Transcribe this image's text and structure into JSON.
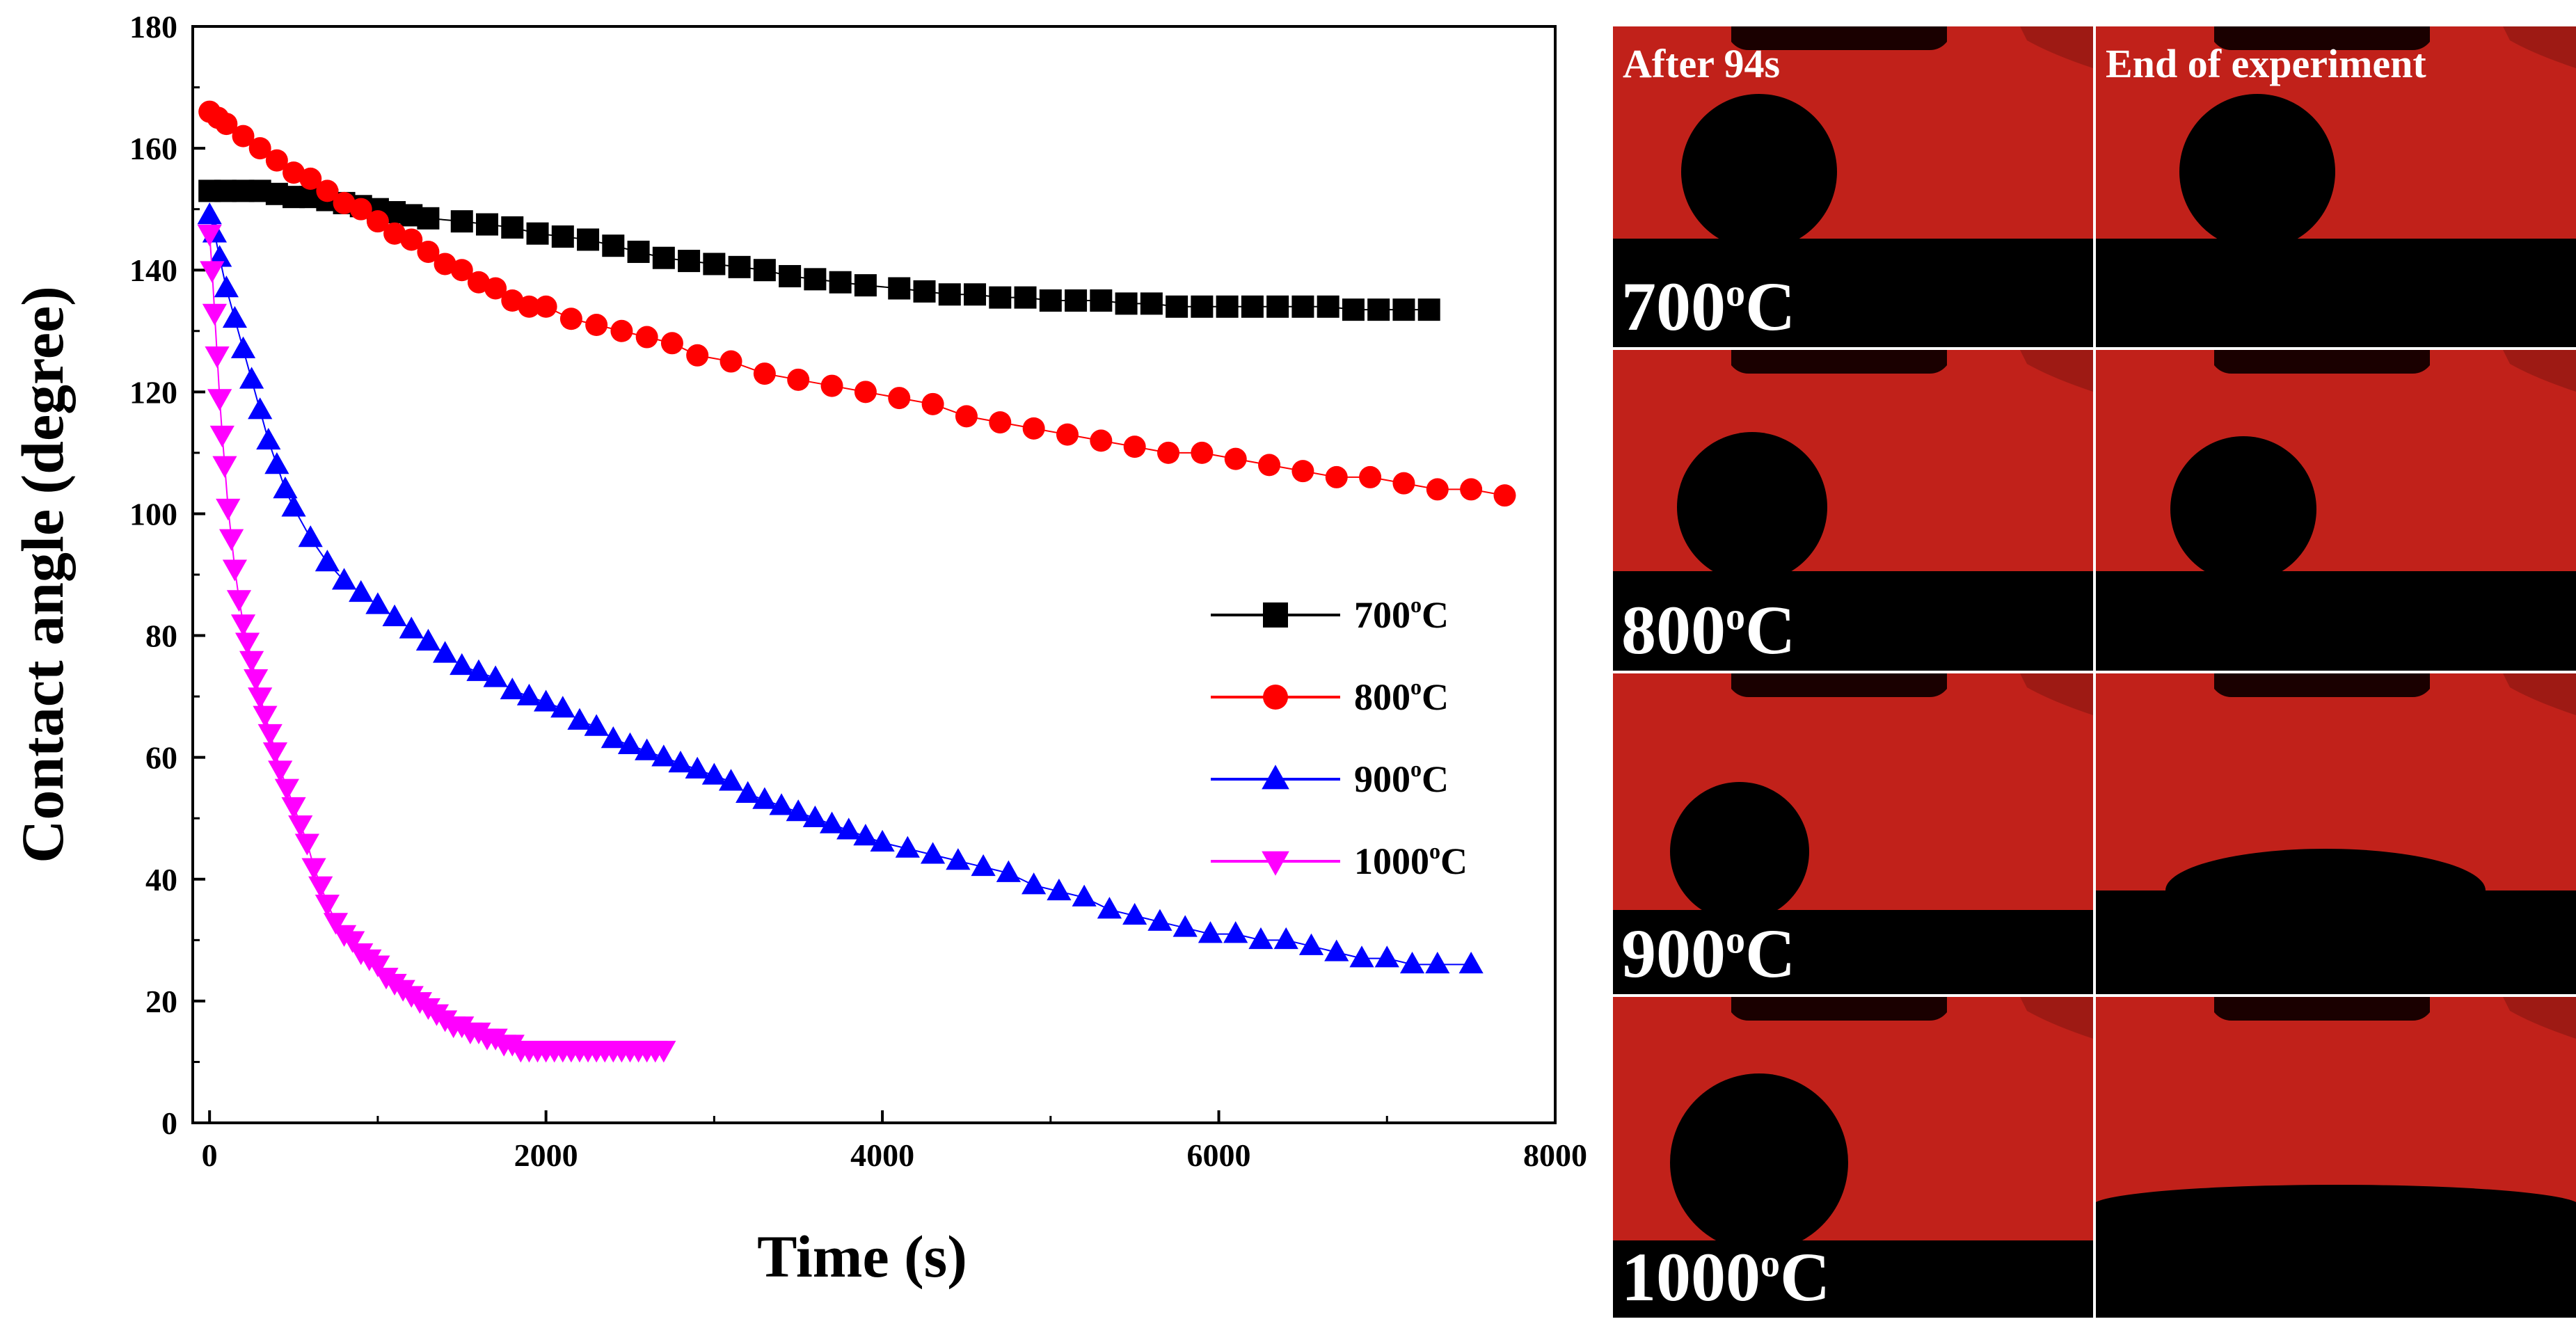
{
  "chart_data": {
    "type": "scatter",
    "title": "",
    "xlabel": "Time (s)",
    "ylabel": "Contact angle (degree)",
    "xlim": [
      -100,
      8000
    ],
    "ylim": [
      0,
      180
    ],
    "xticks": [
      0,
      2000,
      4000,
      6000,
      8000
    ],
    "yticks": [
      0,
      20,
      40,
      60,
      80,
      100,
      120,
      140,
      160,
      180
    ],
    "legend_position": "center-right",
    "series": [
      {
        "name": "700oC",
        "label": "700",
        "sup": "o",
        "suffix": "C",
        "color": "#000000",
        "marker": "square",
        "x": [
          0,
          94,
          200,
          300,
          400,
          500,
          600,
          700,
          800,
          900,
          1000,
          1100,
          1200,
          1300,
          1500,
          1650,
          1800,
          1950,
          2100,
          2250,
          2400,
          2550,
          2700,
          2850,
          3000,
          3150,
          3300,
          3450,
          3600,
          3750,
          3900,
          4100,
          4250,
          4400,
          4550,
          4700,
          4850,
          5000,
          5150,
          5300,
          5450,
          5600,
          5750,
          5900,
          6050,
          6200,
          6350,
          6500,
          6650,
          6800,
          6950,
          7100,
          7250
        ],
        "y": [
          153,
          153,
          153,
          153,
          152.5,
          152,
          152,
          151.5,
          151,
          150.5,
          150,
          149.5,
          149,
          148.5,
          148,
          147.5,
          147,
          146,
          145.5,
          145,
          144,
          143,
          142,
          141.5,
          141,
          140.5,
          140,
          139,
          138.5,
          138,
          137.5,
          137,
          136.5,
          136,
          136,
          135.5,
          135.5,
          135,
          135,
          135,
          134.5,
          134.5,
          134,
          134,
          134,
          134,
          134,
          134,
          134,
          133.5,
          133.5,
          133.5,
          133.5
        ]
      },
      {
        "name": "800oC",
        "label": "800",
        "sup": "o",
        "suffix": "C",
        "color": "#ff0000",
        "marker": "circle",
        "x": [
          0,
          50,
          100,
          200,
          300,
          400,
          500,
          600,
          700,
          800,
          900,
          1000,
          1100,
          1200,
          1300,
          1400,
          1500,
          1600,
          1700,
          1800,
          1900,
          2000,
          2150,
          2300,
          2450,
          2600,
          2750,
          2900,
          3100,
          3300,
          3500,
          3700,
          3900,
          4100,
          4300,
          4500,
          4700,
          4900,
          5100,
          5300,
          5500,
          5700,
          5900,
          6100,
          6300,
          6500,
          6700,
          6900,
          7100,
          7300,
          7500,
          7700
        ],
        "y": [
          166,
          165,
          164,
          162,
          160,
          158,
          156,
          155,
          153,
          151,
          150,
          148,
          146,
          145,
          143,
          141,
          140,
          138,
          137,
          135,
          134,
          134,
          132,
          131,
          130,
          129,
          128,
          126,
          125,
          123,
          122,
          121,
          120,
          119,
          118,
          116,
          115,
          114,
          113,
          112,
          111,
          110,
          110,
          109,
          108,
          107,
          106,
          106,
          105,
          104,
          104,
          103
        ]
      },
      {
        "name": "900oC",
        "label": "900",
        "sup": "o",
        "suffix": "C",
        "color": "#0000ff",
        "marker": "triangle-up",
        "x": [
          0,
          30,
          60,
          100,
          150,
          200,
          250,
          300,
          350,
          400,
          450,
          500,
          600,
          700,
          800,
          900,
          1000,
          1100,
          1200,
          1300,
          1400,
          1500,
          1600,
          1700,
          1800,
          1900,
          2000,
          2100,
          2200,
          2300,
          2400,
          2500,
          2600,
          2700,
          2800,
          2900,
          3000,
          3100,
          3200,
          3300,
          3400,
          3500,
          3600,
          3700,
          3800,
          3900,
          4000,
          4150,
          4300,
          4450,
          4600,
          4750,
          4900,
          5050,
          5200,
          5350,
          5500,
          5650,
          5800,
          5950,
          6100,
          6250,
          6400,
          6550,
          6700,
          6850,
          7000,
          7150,
          7300,
          7500
        ],
        "y": [
          149,
          146,
          142,
          137,
          132,
          127,
          122,
          117,
          112,
          108,
          104,
          101,
          96,
          92,
          89,
          87,
          85,
          83,
          81,
          79,
          77,
          75,
          74,
          73,
          71,
          70,
          69,
          68,
          66,
          65,
          63,
          62,
          61,
          60,
          59,
          58,
          57,
          56,
          54,
          53,
          52,
          51,
          50,
          49,
          48,
          47,
          46,
          45,
          44,
          43,
          42,
          41,
          39,
          38,
          37,
          35,
          34,
          33,
          32,
          31,
          31,
          30,
          30,
          29,
          28,
          27,
          27,
          26,
          26,
          26
        ]
      },
      {
        "name": "1000oC",
        "label": "1000",
        "sup": "o",
        "suffix": "C",
        "color": "#ff00ff",
        "marker": "triangle-down",
        "x": [
          0,
          15,
          30,
          45,
          60,
          75,
          90,
          110,
          130,
          150,
          175,
          200,
          225,
          250,
          275,
          300,
          330,
          360,
          390,
          420,
          460,
          500,
          540,
          580,
          620,
          660,
          700,
          750,
          800,
          850,
          900,
          950,
          1000,
          1050,
          1100,
          1150,
          1200,
          1250,
          1300,
          1350,
          1400,
          1450,
          1500,
          1550,
          1600,
          1650,
          1700,
          1750,
          1800,
          1850,
          1900,
          1950,
          2000,
          2050,
          2100,
          2150,
          2200,
          2250,
          2300,
          2350,
          2400,
          2450,
          2500,
          2550,
          2600,
          2650,
          2700
        ],
        "y": [
          146,
          140,
          133,
          126,
          119,
          113,
          108,
          101,
          96,
          91,
          86,
          82,
          79,
          76,
          73,
          70,
          67,
          64,
          61,
          58,
          55,
          52,
          49,
          46,
          42,
          39,
          36,
          33,
          31,
          30,
          28,
          27,
          26,
          24,
          23,
          22,
          21,
          20,
          19,
          18,
          17,
          16,
          16,
          15,
          15,
          14,
          14,
          13,
          13,
          12,
          12,
          12,
          12,
          12,
          12,
          12,
          12,
          12,
          12,
          12,
          12,
          12,
          12,
          12,
          12,
          12,
          12
        ]
      }
    ]
  },
  "photos": {
    "col_headers": [
      "After 94s",
      "End of experiment"
    ],
    "rows": [
      {
        "temp": "700",
        "sup": "o",
        "unit": "C"
      },
      {
        "temp": "800",
        "sup": "o",
        "unit": "C"
      },
      {
        "temp": "900",
        "sup": "o",
        "unit": "C"
      },
      {
        "temp": "1000",
        "sup": "o",
        "unit": "C"
      }
    ],
    "colors": {
      "background": "#c1211a",
      "droplet": "#000000",
      "divider": "#ffffff"
    }
  }
}
